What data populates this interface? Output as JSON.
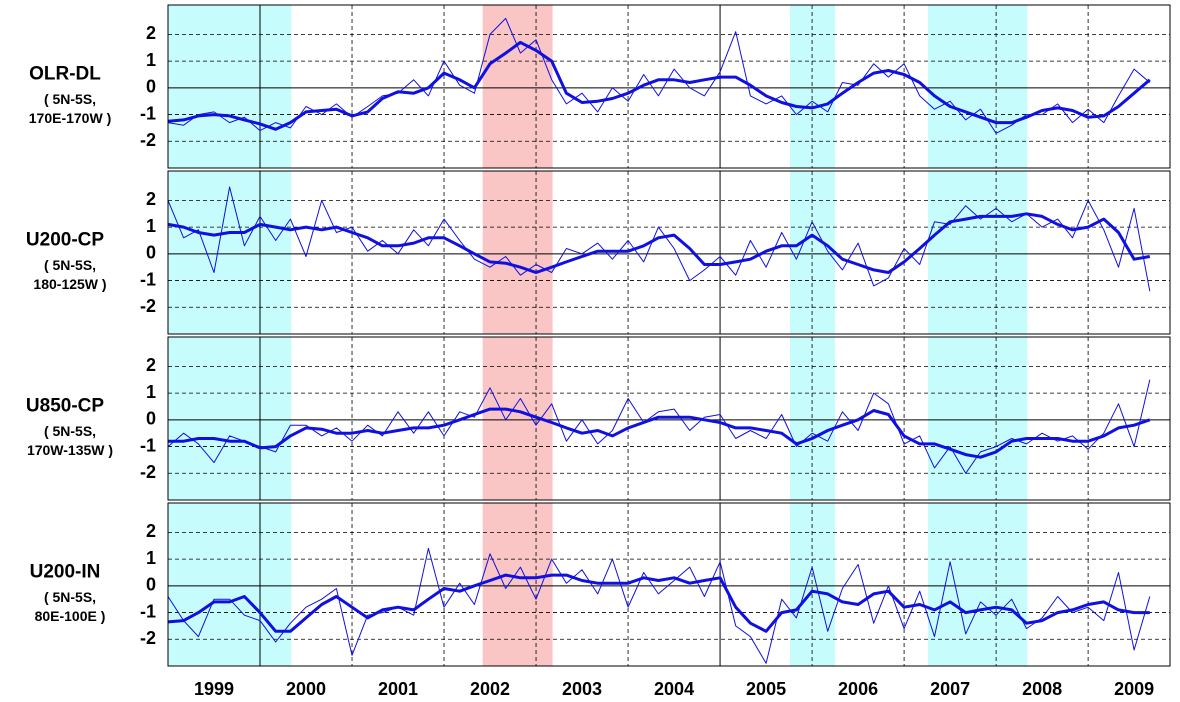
{
  "chart_data": [
    {
      "type": "line",
      "title": "OLR-DL",
      "subtitle": [
        "( 5N-5S,",
        "170E-170W )"
      ],
      "x": [
        1999,
        1999.17,
        1999.33,
        1999.5,
        1999.67,
        1999.83,
        2000,
        2000.17,
        2000.33,
        2000.5,
        2000.67,
        2000.83,
        2001,
        2001.17,
        2001.33,
        2001.5,
        2001.67,
        2001.83,
        2002,
        2002.17,
        2002.33,
        2002.5,
        2002.67,
        2002.83,
        2003,
        2003.17,
        2003.33,
        2003.5,
        2003.67,
        2003.83,
        2004,
        2004.17,
        2004.33,
        2004.5,
        2004.67,
        2004.83,
        2005,
        2005.17,
        2005.33,
        2005.5,
        2005.67,
        2005.83,
        2006,
        2006.17,
        2006.33,
        2006.5,
        2006.67,
        2006.83,
        2007,
        2007.17,
        2007.33,
        2007.5,
        2007.67,
        2007.83,
        2008,
        2008.17,
        2008.33,
        2008.5,
        2008.67,
        2008.83,
        2009,
        2009.17,
        2009.33,
        2009.5,
        2009.67
      ],
      "xlim": [
        1999,
        2009.89
      ],
      "ylim": [
        -3,
        3.1
      ],
      "yticks": [
        -2,
        -1,
        0,
        1,
        2
      ],
      "xgrid": [
        2001,
        2002,
        2003,
        2004,
        2006,
        2007,
        2008,
        2009
      ],
      "xgrid_solid": [
        2000,
        2005
      ],
      "shades": [
        {
          "from": 1999,
          "to": 2000.34,
          "color": "#c6fcfc"
        },
        {
          "from": 2002.42,
          "to": 2003.18,
          "color": "#f9c5c5"
        },
        {
          "from": 2005.76,
          "to": 2006.25,
          "color": "#c6fcfc"
        },
        {
          "from": 2007.26,
          "to": 2008.34,
          "color": "#c6fcfc"
        }
      ],
      "series": [
        {
          "color": "#1010e0",
          "linewidth": 1,
          "values": [
            -1.3,
            -1.4,
            -1.0,
            -0.9,
            -1.3,
            -1.1,
            -1.6,
            -1.3,
            -1.5,
            -0.7,
            -1.0,
            -0.6,
            -1.1,
            -0.7,
            -0.3,
            -0.2,
            0.3,
            -0.3,
            1.0,
            0.1,
            -0.2,
            2.0,
            2.6,
            1.3,
            1.8,
            0.3,
            -0.6,
            -0.2,
            -0.9,
            0.0,
            -0.5,
            0.5,
            -0.3,
            0.7,
            0.0,
            -0.3,
            0.6,
            2.1,
            -0.3,
            -0.6,
            -0.3,
            -1.0,
            -0.5,
            -0.9,
            0.2,
            0.1,
            0.9,
            0.4,
            0.9,
            -0.3,
            -0.8,
            -0.5,
            -1.2,
            -0.8,
            -1.7,
            -1.4,
            -1.0,
            -1.0,
            -0.6,
            -1.3,
            -0.8,
            -1.3,
            -0.3,
            0.7,
            0.2
          ]
        },
        {
          "color": "#1010e0",
          "linewidth": 3,
          "values": [
            -1.25,
            -1.2,
            -1.05,
            -1.0,
            -1.05,
            -1.2,
            -1.35,
            -1.55,
            -1.3,
            -0.9,
            -0.85,
            -0.8,
            -1.05,
            -0.9,
            -0.4,
            -0.15,
            -0.2,
            0.0,
            0.55,
            0.3,
            0.0,
            0.9,
            1.3,
            1.7,
            1.4,
            1.0,
            -0.2,
            -0.55,
            -0.5,
            -0.4,
            -0.2,
            0.1,
            0.3,
            0.3,
            0.2,
            0.3,
            0.4,
            0.4,
            0.1,
            -0.3,
            -0.55,
            -0.7,
            -0.75,
            -0.6,
            -0.2,
            0.2,
            0.55,
            0.65,
            0.5,
            0.2,
            -0.3,
            -0.7,
            -0.9,
            -1.1,
            -1.3,
            -1.3,
            -1.1,
            -0.85,
            -0.75,
            -0.85,
            -1.1,
            -1.05,
            -0.7,
            -0.2,
            0.3
          ]
        }
      ]
    },
    {
      "type": "line",
      "title": "U200-CP",
      "subtitle": [
        "( 5N-5S,",
        "180-125W )"
      ],
      "x": [
        1999,
        1999.17,
        1999.33,
        1999.5,
        1999.67,
        1999.83,
        2000,
        2000.17,
        2000.33,
        2000.5,
        2000.67,
        2000.83,
        2001,
        2001.17,
        2001.33,
        2001.5,
        2001.67,
        2001.83,
        2002,
        2002.17,
        2002.33,
        2002.5,
        2002.67,
        2002.83,
        2003,
        2003.17,
        2003.33,
        2003.5,
        2003.67,
        2003.83,
        2004,
        2004.17,
        2004.33,
        2004.5,
        2004.67,
        2004.83,
        2005,
        2005.17,
        2005.33,
        2005.5,
        2005.67,
        2005.83,
        2006,
        2006.17,
        2006.33,
        2006.5,
        2006.67,
        2006.83,
        2007,
        2007.17,
        2007.33,
        2007.5,
        2007.67,
        2007.83,
        2008,
        2008.17,
        2008.33,
        2008.5,
        2008.67,
        2008.83,
        2009,
        2009.17,
        2009.33,
        2009.5,
        2009.67
      ],
      "xlim": [
        1999,
        2009.89
      ],
      "ylim": [
        -3,
        3.1
      ],
      "yticks": [
        -2,
        -1,
        0,
        1,
        2
      ],
      "xgrid": [
        2001,
        2002,
        2003,
        2004,
        2006,
        2007,
        2008,
        2009
      ],
      "xgrid_solid": [
        2000,
        2005
      ],
      "shades": [
        {
          "from": 1999,
          "to": 2000.34,
          "color": "#c6fcfc"
        },
        {
          "from": 2002.42,
          "to": 2003.18,
          "color": "#f9c5c5"
        },
        {
          "from": 2005.76,
          "to": 2006.25,
          "color": "#c6fcfc"
        },
        {
          "from": 2007.26,
          "to": 2008.34,
          "color": "#c6fcfc"
        }
      ],
      "series": [
        {
          "color": "#1010e0",
          "linewidth": 1,
          "values": [
            2.0,
            0.6,
            0.9,
            -0.7,
            2.5,
            0.3,
            1.4,
            0.5,
            1.3,
            -0.1,
            2.0,
            0.8,
            1.0,
            0.1,
            0.5,
            0.0,
            0.9,
            0.3,
            1.3,
            0.5,
            -0.2,
            -0.5,
            -0.1,
            -0.8,
            -0.4,
            -0.7,
            0.2,
            0.0,
            0.4,
            -0.2,
            0.5,
            -0.3,
            1.0,
            0.2,
            -1.0,
            -0.6,
            -0.1,
            -0.8,
            0.5,
            -0.5,
            0.8,
            -0.2,
            1.2,
            0.1,
            -0.6,
            0.4,
            -1.2,
            -0.9,
            0.2,
            -0.4,
            1.2,
            1.1,
            1.8,
            1.3,
            1.7,
            1.2,
            1.5,
            1.0,
            1.3,
            0.6,
            2.0,
            0.9,
            -0.5,
            1.7,
            -1.4
          ]
        },
        {
          "color": "#1010e0",
          "linewidth": 3,
          "values": [
            1.1,
            1.0,
            0.8,
            0.7,
            0.8,
            0.8,
            1.1,
            1.0,
            0.9,
            1.0,
            0.9,
            1.0,
            0.8,
            0.6,
            0.3,
            0.3,
            0.4,
            0.6,
            0.6,
            0.3,
            0.0,
            -0.3,
            -0.35,
            -0.5,
            -0.7,
            -0.5,
            -0.3,
            -0.1,
            0.1,
            0.1,
            0.1,
            0.3,
            0.6,
            0.7,
            0.2,
            -0.4,
            -0.4,
            -0.3,
            -0.2,
            0.1,
            0.3,
            0.3,
            0.7,
            0.3,
            -0.2,
            -0.4,
            -0.6,
            -0.7,
            -0.3,
            0.2,
            0.7,
            1.2,
            1.3,
            1.4,
            1.4,
            1.4,
            1.5,
            1.4,
            1.1,
            0.9,
            1.0,
            1.3,
            0.8,
            -0.2,
            -0.1
          ]
        }
      ]
    },
    {
      "type": "line",
      "title": "U850-CP",
      "subtitle": [
        "( 5N-5S,",
        "170W-135W )"
      ],
      "x": [
        1999,
        1999.17,
        1999.33,
        1999.5,
        1999.67,
        1999.83,
        2000,
        2000.17,
        2000.33,
        2000.5,
        2000.67,
        2000.83,
        2001,
        2001.17,
        2001.33,
        2001.5,
        2001.67,
        2001.83,
        2002,
        2002.17,
        2002.33,
        2002.5,
        2002.67,
        2002.83,
        2003,
        2003.17,
        2003.33,
        2003.5,
        2003.67,
        2003.83,
        2004,
        2004.17,
        2004.33,
        2004.5,
        2004.67,
        2004.83,
        2005,
        2005.17,
        2005.33,
        2005.5,
        2005.67,
        2005.83,
        2006,
        2006.17,
        2006.33,
        2006.5,
        2006.67,
        2006.83,
        2007,
        2007.17,
        2007.33,
        2007.5,
        2007.67,
        2007.83,
        2008,
        2008.17,
        2008.33,
        2008.5,
        2008.67,
        2008.83,
        2009,
        2009.17,
        2009.33,
        2009.5,
        2009.67
      ],
      "xlim": [
        1999,
        2009.89
      ],
      "ylim": [
        -3,
        3.1
      ],
      "yticks": [
        -2,
        -1,
        0,
        1,
        2
      ],
      "xgrid": [
        2001,
        2002,
        2003,
        2004,
        2006,
        2007,
        2008,
        2009
      ],
      "xgrid_solid": [
        2000,
        2005
      ],
      "shades": [
        {
          "from": 1999,
          "to": 2000.34,
          "color": "#c6fcfc"
        },
        {
          "from": 2002.42,
          "to": 2003.18,
          "color": "#f9c5c5"
        },
        {
          "from": 2005.76,
          "to": 2006.25,
          "color": "#c6fcfc"
        },
        {
          "from": 2007.26,
          "to": 2008.34,
          "color": "#c6fcfc"
        }
      ],
      "series": [
        {
          "color": "#1010e0",
          "linewidth": 1,
          "values": [
            -1.0,
            -0.5,
            -0.9,
            -1.6,
            -0.6,
            -0.8,
            -1.0,
            -1.2,
            -0.2,
            -0.2,
            -0.6,
            -0.3,
            -0.8,
            -0.2,
            -0.6,
            0.3,
            -0.5,
            0.3,
            -0.6,
            0.3,
            0.1,
            1.2,
            0.0,
            0.8,
            -0.2,
            0.6,
            -0.8,
            0.0,
            -0.9,
            -0.4,
            0.8,
            -0.1,
            0.3,
            0.4,
            -0.4,
            0.1,
            0.2,
            -0.7,
            -0.4,
            -0.7,
            0.2,
            -1.0,
            -0.5,
            -0.8,
            0.3,
            -0.4,
            1.0,
            0.6,
            -0.9,
            -0.6,
            -1.8,
            -1.0,
            -2.0,
            -1.2,
            -1.0,
            -0.7,
            -0.9,
            -0.5,
            -0.8,
            -0.6,
            -1.1,
            -0.5,
            0.6,
            -1.0,
            1.5
          ]
        },
        {
          "color": "#1010e0",
          "linewidth": 3,
          "values": [
            -0.8,
            -0.8,
            -0.7,
            -0.7,
            -0.8,
            -0.8,
            -1.05,
            -1.0,
            -0.6,
            -0.3,
            -0.35,
            -0.5,
            -0.5,
            -0.4,
            -0.5,
            -0.4,
            -0.3,
            -0.3,
            -0.2,
            0.0,
            0.2,
            0.4,
            0.4,
            0.3,
            0.1,
            -0.1,
            -0.3,
            -0.5,
            -0.4,
            -0.6,
            -0.3,
            -0.1,
            0.1,
            0.1,
            0.1,
            0.0,
            -0.1,
            -0.3,
            -0.3,
            -0.4,
            -0.5,
            -0.9,
            -0.7,
            -0.4,
            -0.2,
            0.0,
            0.35,
            0.2,
            -0.6,
            -0.9,
            -0.9,
            -1.1,
            -1.3,
            -1.4,
            -1.2,
            -0.8,
            -0.7,
            -0.7,
            -0.7,
            -0.8,
            -0.8,
            -0.6,
            -0.3,
            -0.2,
            0.0
          ]
        }
      ]
    },
    {
      "type": "line",
      "title": "U200-IN",
      "subtitle": [
        "( 5N-5S,",
        "80E-100E )"
      ],
      "x": [
        1999,
        1999.17,
        1999.33,
        1999.5,
        1999.67,
        1999.83,
        2000,
        2000.17,
        2000.33,
        2000.5,
        2000.67,
        2000.83,
        2001,
        2001.17,
        2001.33,
        2001.5,
        2001.67,
        2001.83,
        2002,
        2002.17,
        2002.33,
        2002.5,
        2002.67,
        2002.83,
        2003,
        2003.17,
        2003.33,
        2003.5,
        2003.67,
        2003.83,
        2004,
        2004.17,
        2004.33,
        2004.5,
        2004.67,
        2004.83,
        2005,
        2005.17,
        2005.33,
        2005.5,
        2005.67,
        2005.83,
        2006,
        2006.17,
        2006.33,
        2006.5,
        2006.67,
        2006.83,
        2007,
        2007.17,
        2007.33,
        2007.5,
        2007.67,
        2007.83,
        2008,
        2008.17,
        2008.33,
        2008.5,
        2008.67,
        2008.83,
        2009,
        2009.17,
        2009.33,
        2009.5,
        2009.67
      ],
      "xlim": [
        1999,
        2009.89
      ],
      "ylim": [
        -3,
        3.1
      ],
      "yticks": [
        -2,
        -1,
        0,
        1,
        2
      ],
      "xticks": [
        {
          "value": 1999.5,
          "label": "1999"
        },
        {
          "value": 2000.5,
          "label": "2000"
        },
        {
          "value": 2001.5,
          "label": "2001"
        },
        {
          "value": 2002.5,
          "label": "2002"
        },
        {
          "value": 2003.5,
          "label": "2003"
        },
        {
          "value": 2004.5,
          "label": "2004"
        },
        {
          "value": 2005.5,
          "label": "2005"
        },
        {
          "value": 2006.5,
          "label": "2006"
        },
        {
          "value": 2007.5,
          "label": "2007"
        },
        {
          "value": 2008.5,
          "label": "2008"
        },
        {
          "value": 2009.5,
          "label": "2009"
        }
      ],
      "xgrid": [
        2001,
        2002,
        2003,
        2004,
        2006,
        2007,
        2008,
        2009
      ],
      "xgrid_solid": [
        2000,
        2005
      ],
      "shades": [
        {
          "from": 1999,
          "to": 2000.34,
          "color": "#c6fcfc"
        },
        {
          "from": 2002.42,
          "to": 2003.18,
          "color": "#f9c5c5"
        },
        {
          "from": 2005.76,
          "to": 2006.25,
          "color": "#c6fcfc"
        },
        {
          "from": 2007.26,
          "to": 2008.34,
          "color": "#c6fcfc"
        }
      ],
      "series": [
        {
          "color": "#1010e0",
          "linewidth": 1,
          "values": [
            -0.4,
            -1.3,
            -1.9,
            -0.5,
            -0.5,
            -1.1,
            -1.3,
            -2.1,
            -1.4,
            -0.8,
            -0.5,
            -0.1,
            -2.6,
            -1.1,
            -1.0,
            -0.8,
            -1.1,
            1.4,
            -0.8,
            0.1,
            -0.7,
            1.2,
            -0.1,
            0.7,
            -0.5,
            1.0,
            0.1,
            0.6,
            -0.3,
            1.0,
            -0.8,
            0.5,
            -0.3,
            0.2,
            0.7,
            -0.4,
            0.9,
            -1.5,
            -1.9,
            -2.9,
            -0.5,
            -1.2,
            0.7,
            -1.7,
            -0.1,
            0.8,
            -1.4,
            0.0,
            -1.6,
            -0.2,
            -1.9,
            0.9,
            -1.8,
            -0.6,
            -1.1,
            -0.5,
            -1.6,
            -1.2,
            -0.4,
            -1.0,
            -0.8,
            -1.3,
            0.5,
            -2.4,
            -0.4
          ]
        },
        {
          "color": "#1010e0",
          "linewidth": 3,
          "values": [
            -1.35,
            -1.3,
            -1.0,
            -0.6,
            -0.6,
            -0.4,
            -1.0,
            -1.7,
            -1.7,
            -1.2,
            -0.7,
            -0.4,
            -0.8,
            -1.2,
            -0.9,
            -0.8,
            -0.9,
            -0.5,
            -0.1,
            -0.2,
            0.0,
            0.2,
            0.4,
            0.3,
            0.3,
            0.4,
            0.4,
            0.2,
            0.1,
            0.1,
            0.1,
            0.3,
            0.2,
            0.3,
            0.1,
            0.2,
            0.3,
            -0.8,
            -1.4,
            -1.7,
            -1.0,
            -0.9,
            -0.2,
            -0.3,
            -0.6,
            -0.7,
            -0.3,
            -0.2,
            -0.8,
            -0.7,
            -0.9,
            -0.6,
            -1.0,
            -0.9,
            -0.8,
            -0.9,
            -1.4,
            -1.3,
            -1.0,
            -0.9,
            -0.7,
            -0.6,
            -0.9,
            -1.0,
            -1.0
          ]
        }
      ]
    }
  ]
}
